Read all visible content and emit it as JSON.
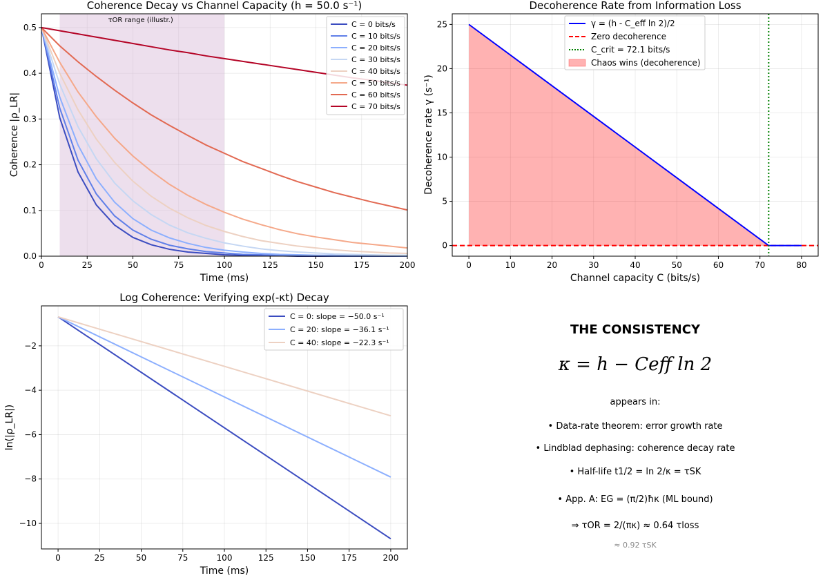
{
  "chart_data": [
    {
      "type": "line",
      "title": "Coherence Decay vs Channel Capacity (h = 50.0 s⁻¹)",
      "xlabel": "Time (ms)",
      "ylabel": "Coherence |ρ_LR|",
      "xlim": [
        0,
        200
      ],
      "ylim": [
        0,
        0.53
      ],
      "xticks": [
        "0",
        "25",
        "50",
        "75",
        "100",
        "125",
        "150",
        "175",
        "200"
      ],
      "yticks": [
        "0.0",
        "0.1",
        "0.2",
        "0.3",
        "0.4",
        "0.5"
      ],
      "grid": true,
      "legend": "top-right",
      "shaded_region": {
        "x": [
          10,
          100
        ],
        "label": "τOR range (illustr.)",
        "color": "#d8b8d8"
      },
      "x": [
        0,
        10,
        20,
        30,
        40,
        50,
        60,
        70,
        80,
        90,
        100,
        110,
        120,
        130,
        140,
        150,
        160,
        170,
        180,
        190,
        200
      ],
      "series": [
        {
          "name": "C = 0 bits/s",
          "color": "#3b4cc0",
          "values": [
            0.5,
            0.303,
            0.184,
            0.112,
            0.068,
            0.041,
            0.025,
            0.015,
            0.009,
            0.006,
            0.003,
            0.002,
            0.001,
            0.001,
            0.0,
            0.0,
            0.0,
            0.0,
            0.0,
            0.0,
            0.0
          ]
        },
        {
          "name": "C = 10 bits/s",
          "color": "#5f7fe8",
          "values": [
            0.5,
            0.324,
            0.21,
            0.136,
            0.088,
            0.057,
            0.037,
            0.024,
            0.016,
            0.01,
            0.007,
            0.004,
            0.003,
            0.002,
            0.001,
            0.001,
            0.0,
            0.0,
            0.0,
            0.0,
            0.0
          ]
        },
        {
          "name": "C = 20 bits/s",
          "color": "#8caffe",
          "values": [
            0.5,
            0.348,
            0.243,
            0.169,
            0.118,
            0.082,
            0.057,
            0.04,
            0.028,
            0.019,
            0.013,
            0.009,
            0.006,
            0.004,
            0.003,
            0.002,
            0.002,
            0.001,
            0.001,
            0.001,
            0.0
          ]
        },
        {
          "name": "C = 30 bits/s",
          "color": "#c5d7f3",
          "values": [
            0.5,
            0.376,
            0.283,
            0.213,
            0.16,
            0.121,
            0.091,
            0.068,
            0.051,
            0.039,
            0.029,
            0.022,
            0.016,
            0.012,
            0.009,
            0.007,
            0.005,
            0.004,
            0.003,
            0.002,
            0.002
          ]
        },
        {
          "name": "C = 40 bits/s",
          "color": "#edd1c2",
          "values": [
            0.5,
            0.4,
            0.32,
            0.256,
            0.205,
            0.164,
            0.131,
            0.105,
            0.084,
            0.067,
            0.054,
            0.043,
            0.034,
            0.028,
            0.022,
            0.018,
            0.014,
            0.011,
            0.009,
            0.007,
            0.006
          ]
        },
        {
          "name": "C = 50 bits/s",
          "color": "#f5a889",
          "values": [
            0.5,
            0.424,
            0.359,
            0.305,
            0.258,
            0.219,
            0.186,
            0.157,
            0.133,
            0.113,
            0.096,
            0.081,
            0.069,
            0.058,
            0.049,
            0.042,
            0.036,
            0.03,
            0.026,
            0.022,
            0.018
          ]
        },
        {
          "name": "C = 60 bits/s",
          "color": "#e26952",
          "values": [
            0.5,
            0.46,
            0.425,
            0.393,
            0.363,
            0.335,
            0.309,
            0.286,
            0.264,
            0.243,
            0.225,
            0.207,
            0.192,
            0.177,
            0.163,
            0.151,
            0.139,
            0.129,
            0.119,
            0.11,
            0.101
          ]
        },
        {
          "name": "C = 70 bits/s",
          "color": "#b40426",
          "values": [
            0.5,
            0.493,
            0.486,
            0.479,
            0.472,
            0.465,
            0.458,
            0.451,
            0.445,
            0.438,
            0.432,
            0.426,
            0.42,
            0.414,
            0.408,
            0.402,
            0.396,
            0.39,
            0.385,
            0.379,
            0.374
          ]
        }
      ]
    },
    {
      "type": "line",
      "title": "Decoherence Rate from Information Loss",
      "xlabel": "Channel capacity C (bits/s)",
      "ylabel": "Decoherence rate γ (s⁻¹)",
      "xlim": [
        -4,
        84
      ],
      "ylim": [
        -1.2,
        26.2
      ],
      "xticks": [
        "0",
        "10",
        "20",
        "30",
        "40",
        "50",
        "60",
        "70",
        "80"
      ],
      "yticks": [
        "0",
        "5",
        "10",
        "15",
        "20",
        "25"
      ],
      "grid": true,
      "legend": "top-center",
      "series": [
        {
          "name": "γ = (h - C_eff ln 2)/2",
          "color": "#0000ff",
          "x": [
            0,
            72.1,
            80
          ],
          "values": [
            25,
            0,
            0
          ]
        },
        {
          "name": "Zero decoherence",
          "color": "#ff0000",
          "style": "dashed",
          "y": 0
        },
        {
          "name": "C_crit = 72.1 bits/s",
          "color": "#008000",
          "style": "dotted",
          "x": 72.1
        },
        {
          "name": "Chaos wins (decoherence)",
          "color": "#ff0000",
          "style": "fill",
          "x": [
            0,
            72.1
          ],
          "values": [
            25,
            0
          ]
        }
      ]
    },
    {
      "type": "line",
      "title": "Log Coherence: Verifying exp(-κt) Decay",
      "xlabel": "Time (ms)",
      "ylabel": "ln(|ρ_LR|)",
      "xlim": [
        -10,
        210
      ],
      "ylim": [
        -11.15,
        -0.2
      ],
      "xticks": [
        "0",
        "25",
        "50",
        "75",
        "100",
        "125",
        "150",
        "175",
        "200"
      ],
      "yticks": [
        "−2",
        "−4",
        "−6",
        "−8",
        "−10"
      ],
      "grid": true,
      "legend": "top-right",
      "x": [
        0,
        200
      ],
      "series": [
        {
          "name": "C = 0: slope = −50.0 s⁻¹",
          "color": "#3b4cc0",
          "values": [
            -0.693,
            -10.693
          ]
        },
        {
          "name": "C = 20: slope = −36.1 s⁻¹",
          "color": "#8caffe",
          "values": [
            -0.693,
            -7.913
          ]
        },
        {
          "name": "C = 40: slope = −22.3 s⁻¹",
          "color": "#edd1c2",
          "values": [
            -0.693,
            -5.153
          ]
        }
      ]
    }
  ],
  "text_panel": {
    "title": "THE CONSISTENCY",
    "formula": "κ = h − Ceff ln 2",
    "appears_in": "appears in:",
    "items": [
      "• Data-rate theorem: error growth rate",
      "• Lindblad dephasing: coherence decay rate",
      "• Half-life t1/2 = ln 2/κ = τSK",
      "• App. A: EG = (π/2)ħκ (ML bound)",
      "⇒ τOR = 2/(πκ) ≈ 0.64 τloss"
    ],
    "footnote": "≈ 0.92 τSK"
  }
}
